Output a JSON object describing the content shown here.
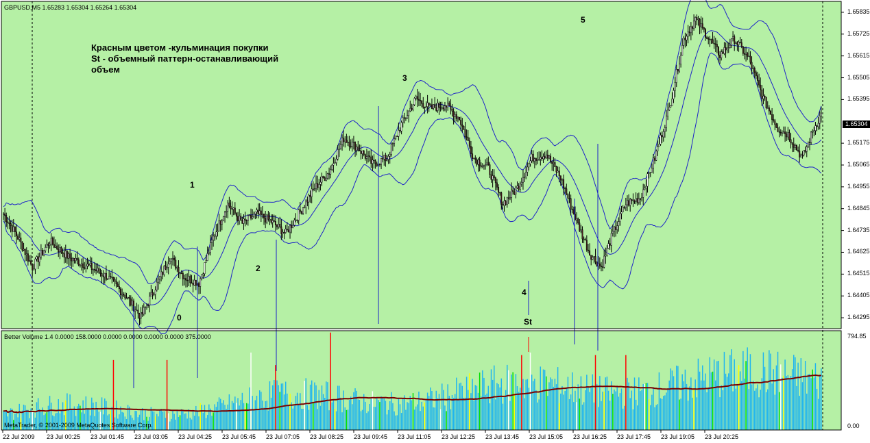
{
  "chart_header": "GBPUSD,M5  1.65283 1.65304 1.65264 1.65304",
  "annotation": {
    "line1": "Красным цветом -кульминация покупки",
    "line2": "St - объемный паттерн-останавливающий",
    "line3": "объем"
  },
  "wave_labels": {
    "w0": "0",
    "w1": "1",
    "w2": "2",
    "w3": "3",
    "w4": "4",
    "w5": "5",
    "st": "St"
  },
  "indicator_header": "Better Volume 1.4 0.0000 158.0000 0.0000 0.0000 0.0000 0.0000 375.0000",
  "copyright": "MetaTrader, © 2001-2009 MetaQuotes Software Corp.",
  "current_price": "1.65304",
  "volume_max": "794.85",
  "volume_min": "0.00",
  "price_ticks": [
    "1.65835",
    "1.65725",
    "1.65615",
    "1.65505",
    "1.65395",
    "1.65175",
    "1.65065",
    "1.64955",
    "1.64845",
    "1.64735",
    "1.64625",
    "1.64515",
    "1.64405",
    "1.64295"
  ],
  "time_ticks": [
    "22 Jul 2009",
    "23 Jul 00:25",
    "23 Jul 01:45",
    "23 Jul 03:05",
    "23 Jul 04:25",
    "23 Jul 05:45",
    "23 Jul 07:05",
    "23 Jul 08:25",
    "23 Jul 09:45",
    "23 Jul 11:05",
    "23 Jul 12:25",
    "23 Jul 13:45",
    "23 Jul 15:05",
    "23 Jul 16:25",
    "23 Jul 17:45",
    "23 Jul 19:05",
    "23 Jul 20:25"
  ],
  "colors": {
    "background": "#b5f0a5",
    "bull_candle": "#ffffff",
    "bear_candle": "#000000",
    "candle_body_dark": "#4a1f1f",
    "bands": "#1c22c8",
    "volume_normal": "#1eb4f0",
    "volume_climax": "#ff0000",
    "volume_churn": "#00e000",
    "volume_low": "#ffff00",
    "volume_white": "#ffffff",
    "volume_avg": "#7a0000"
  },
  "chart_data": {
    "type": "candlestick",
    "series": [
      {
        "name": "GBPUSD,M5",
        "anchors": [
          [
            0,
            1.6482
          ],
          [
            10,
            1.647
          ],
          [
            20,
            1.6455
          ],
          [
            32,
            1.6468
          ],
          [
            45,
            1.646
          ],
          [
            60,
            1.6455
          ],
          [
            72,
            1.645
          ],
          [
            85,
            1.644
          ],
          [
            95,
            1.643
          ],
          [
            105,
            1.6445
          ],
          [
            115,
            1.646
          ],
          [
            125,
            1.645
          ],
          [
            135,
            1.6447
          ],
          [
            145,
            1.647
          ],
          [
            155,
            1.6487
          ],
          [
            165,
            1.6477
          ],
          [
            175,
            1.6482
          ],
          [
            185,
            1.6478
          ],
          [
            195,
            1.6472
          ],
          [
            205,
            1.6483
          ],
          [
            215,
            1.6495
          ],
          [
            225,
            1.6503
          ],
          [
            235,
            1.652
          ],
          [
            245,
            1.6515
          ],
          [
            255,
            1.6507
          ],
          [
            265,
            1.651
          ],
          [
            275,
            1.6527
          ],
          [
            285,
            1.654
          ],
          [
            295,
            1.6535
          ],
          [
            305,
            1.6537
          ],
          [
            315,
            1.653
          ],
          [
            325,
            1.651
          ],
          [
            335,
            1.6505
          ],
          [
            345,
            1.6487
          ],
          [
            355,
            1.6495
          ],
          [
            365,
            1.651
          ],
          [
            375,
            1.6512
          ],
          [
            385,
            1.65
          ],
          [
            395,
            1.648
          ],
          [
            405,
            1.6462
          ],
          [
            413,
            1.6455
          ],
          [
            420,
            1.647
          ],
          [
            430,
            1.6487
          ],
          [
            440,
            1.649
          ],
          [
            450,
            1.651
          ],
          [
            460,
            1.6535
          ],
          [
            470,
            1.657
          ],
          [
            478,
            1.658
          ],
          [
            485,
            1.6573
          ],
          [
            495,
            1.6562
          ],
          [
            505,
            1.657
          ],
          [
            515,
            1.656
          ],
          [
            525,
            1.654
          ],
          [
            535,
            1.6525
          ],
          [
            542,
            1.6522
          ],
          [
            552,
            1.651
          ],
          [
            560,
            1.6525
          ],
          [
            565,
            1.6532
          ]
        ]
      }
    ],
    "bands": [
      "upper",
      "middle",
      "lower"
    ],
    "volume_indicator": "Better Volume 1.4",
    "ylim": [
      1.6429,
      1.659
    ],
    "volume_ylim": [
      0,
      794.85
    ]
  }
}
